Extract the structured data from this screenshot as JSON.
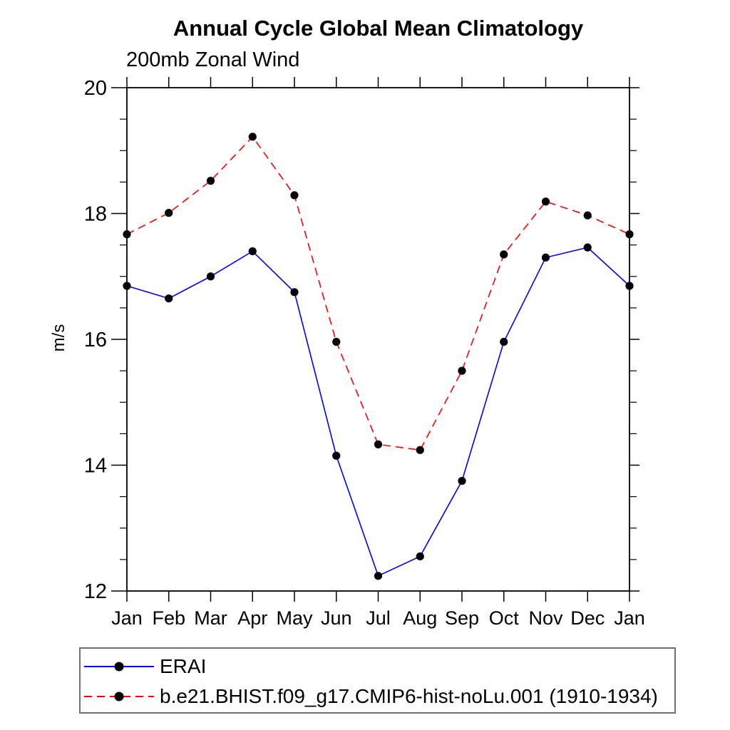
{
  "chart_data": {
    "type": "line",
    "title": "Annual Cycle Global Mean Climatology",
    "subtitle": "200mb Zonal Wind",
    "ylabel": "m/s",
    "xlabel": "",
    "categories": [
      "Jan",
      "Feb",
      "Mar",
      "Apr",
      "May",
      "Jun",
      "Jul",
      "Aug",
      "Sep",
      "Oct",
      "Nov",
      "Dec",
      "Jan"
    ],
    "series": [
      {
        "name": "ERAI",
        "color": "#0000ff",
        "line_style": "solid",
        "marker": "filled-black-circle",
        "values": [
          16.85,
          16.65,
          17.0,
          17.4,
          16.75,
          14.15,
          12.24,
          12.55,
          13.75,
          15.96,
          17.3,
          17.46,
          16.85
        ]
      },
      {
        "name": "b.e21.BHIST.f09_g17.CMIP6-hist-noLu.001 (1910-1934)",
        "color": "#ff0000",
        "line_style": "dashed",
        "marker": "filled-black-circle",
        "values": [
          17.67,
          18.01,
          18.52,
          19.22,
          18.29,
          15.96,
          14.33,
          14.24,
          15.5,
          17.35,
          18.19,
          17.97,
          17.67
        ]
      }
    ],
    "ylim": [
      12,
      20
    ],
    "yticks": [
      12,
      14,
      16,
      18,
      20
    ],
    "ytick_labels": [
      "12",
      "14",
      "16",
      "18",
      "20"
    ],
    "y_minor_interval": 0.5,
    "grid": "off",
    "legend_position": "bottom-box",
    "marker_color": "#000000",
    "axis_color": "#000000"
  }
}
